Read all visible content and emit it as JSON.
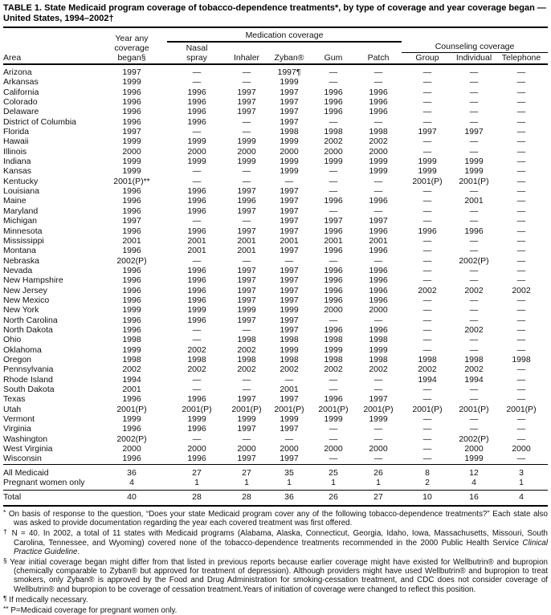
{
  "title_line1": "TABLE 1. State Medicaid program coverage of tobacco-dependence treatments*, by type of coverage and year coverage began —",
  "title_line2": "United States, 1994–2002†",
  "table": {
    "header": {
      "area": "Area",
      "year_line1": "Year any",
      "year_line2": "coverage",
      "year_line3": "began§",
      "med_group": "Medication coverage",
      "couns_group": "Counseling coverage",
      "nasal_line1": "Nasal",
      "nasal_line2": "spray",
      "inhaler": "Inhaler",
      "zyban": "Zyban®",
      "gum": "Gum",
      "patch": "Patch",
      "group": "Group",
      "individual": "Individual",
      "telephone": "Telephone"
    },
    "rows": [
      [
        "Arizona",
        "1997",
        "—",
        "—",
        "1997¶",
        "—",
        "—",
        "—",
        "—",
        "—"
      ],
      [
        "Arkansas",
        "1999",
        "—",
        "—",
        "1999",
        "—",
        "—",
        "—",
        "—",
        "—"
      ],
      [
        "California",
        "1996",
        "1996",
        "1997",
        "1997",
        "1996",
        "1996",
        "—",
        "—",
        "—"
      ],
      [
        "Colorado",
        "1996",
        "1996",
        "1997",
        "1997",
        "1996",
        "1996",
        "—",
        "—",
        "—"
      ],
      [
        "Delaware",
        "1996",
        "1996",
        "1997",
        "1997",
        "1996",
        "1996",
        "—",
        "—",
        "—"
      ],
      [
        "District of Columbia",
        "1996",
        "1996",
        "—",
        "1997",
        "—",
        "—",
        "—",
        "—",
        "—"
      ],
      [
        "Florida",
        "1997",
        "—",
        "—",
        "1998",
        "1998",
        "1998",
        "1997",
        "1997",
        "—"
      ],
      [
        "Hawaii",
        "1999",
        "1999",
        "1999",
        "1999",
        "2002",
        "2002",
        "—",
        "—",
        "—"
      ],
      [
        "Illinois",
        "2000",
        "2000",
        "2000",
        "2000",
        "2000",
        "2000",
        "—",
        "—",
        "—"
      ],
      [
        "Indiana",
        "1999",
        "1999",
        "1999",
        "1999",
        "1999",
        "1999",
        "1999",
        "1999",
        "—"
      ],
      [
        "Kansas",
        "1999",
        "—",
        "—",
        "1999",
        "—",
        "1999",
        "1999",
        "1999",
        "—"
      ],
      [
        "Kentucky",
        "2001(P)**",
        "—",
        "—",
        "—",
        "—",
        "—",
        "2001(P)",
        "2001(P)",
        "—"
      ],
      [
        "Louisiana",
        "1996",
        "1996",
        "1997",
        "1997",
        "—",
        "—",
        "—",
        "—",
        "—"
      ],
      [
        "Maine",
        "1996",
        "1996",
        "1996",
        "1997",
        "1996",
        "1996",
        "—",
        "2001",
        "—"
      ],
      [
        "Maryland",
        "1996",
        "1996",
        "1997",
        "1997",
        "—",
        "—",
        "—",
        "—",
        "—"
      ],
      [
        "Michigan",
        "1997",
        "—",
        "—",
        "1997",
        "1997",
        "1997",
        "—",
        "—",
        "—"
      ],
      [
        "Minnesota",
        "1996",
        "1996",
        "1997",
        "1997",
        "1996",
        "1996",
        "1996",
        "1996",
        "—"
      ],
      [
        "Mississippi",
        "2001",
        "2001",
        "2001",
        "2001",
        "2001",
        "2001",
        "—",
        "—",
        "—"
      ],
      [
        "Montana",
        "1996",
        "2001",
        "2001",
        "1997",
        "1996",
        "1996",
        "—",
        "—",
        "—"
      ],
      [
        "Nebraska",
        "2002(P)",
        "—",
        "—",
        "—",
        "—",
        "—",
        "—",
        "2002(P)",
        "—"
      ],
      [
        "Nevada",
        "1996",
        "1996",
        "1997",
        "1997",
        "1996",
        "1996",
        "—",
        "—",
        "—"
      ],
      [
        "New Hampshire",
        "1996",
        "1996",
        "1997",
        "1997",
        "1996",
        "1996",
        "—",
        "—",
        "—"
      ],
      [
        "New Jersey",
        "1996",
        "1996",
        "1997",
        "1997",
        "1996",
        "1996",
        "2002",
        "2002",
        "2002"
      ],
      [
        "New Mexico",
        "1996",
        "1996",
        "1997",
        "1997",
        "1996",
        "1996",
        "—",
        "—",
        "—"
      ],
      [
        "New York",
        "1999",
        "1999",
        "1999",
        "1999",
        "2000",
        "2000",
        "—",
        "—",
        "—"
      ],
      [
        "North Carolina",
        "1996",
        "1996",
        "1997",
        "1997",
        "—",
        "—",
        "—",
        "—",
        "—"
      ],
      [
        "North Dakota",
        "1996",
        "—",
        "—",
        "1997",
        "1996",
        "1996",
        "—",
        "2002",
        "—"
      ],
      [
        "Ohio",
        "1998",
        "—",
        "1998",
        "1998",
        "1998",
        "1998",
        "—",
        "—",
        "—"
      ],
      [
        "Oklahoma",
        "1999",
        "2002",
        "2002",
        "1999",
        "1999",
        "1999",
        "—",
        "—",
        "—"
      ],
      [
        "Oregon",
        "1998",
        "1998",
        "1998",
        "1998",
        "1998",
        "1998",
        "1998",
        "1998",
        "1998"
      ],
      [
        "Pennsylvania",
        "2002",
        "2002",
        "2002",
        "2002",
        "2002",
        "2002",
        "2002",
        "2002",
        "—"
      ],
      [
        "Rhode Island",
        "1994",
        "—",
        "—",
        "—",
        "—",
        "—",
        "1994",
        "1994",
        "—"
      ],
      [
        "South Dakota",
        "2001",
        "—",
        "—",
        "2001",
        "—",
        "—",
        "—",
        "—",
        "—"
      ],
      [
        "Texas",
        "1996",
        "1996",
        "1997",
        "1997",
        "1996",
        "1997",
        "—",
        "—",
        "—"
      ],
      [
        "Utah",
        "2001(P)",
        "2001(P)",
        "2001(P)",
        "2001(P)",
        "2001(P)",
        "2001(P)",
        "2001(P)",
        "2001(P)",
        "2001(P)"
      ],
      [
        "Vermont",
        "1999",
        "1999",
        "1999",
        "1999",
        "1999",
        "1999",
        "—",
        "—",
        "—"
      ],
      [
        "Virginia",
        "1996",
        "1996",
        "1997",
        "1997",
        "—",
        "—",
        "—",
        "—",
        "—"
      ],
      [
        "Washington",
        "2002(P)",
        "—",
        "—",
        "—",
        "—",
        "—",
        "—",
        "2002(P)",
        "—"
      ],
      [
        "West Virginia",
        "2000",
        "2000",
        "2000",
        "2000",
        "2000",
        "2000",
        "—",
        "2000",
        "2000"
      ],
      [
        "Wisconsin",
        "1996",
        "1996",
        "1997",
        "1997",
        "—",
        "—",
        "—",
        "1999",
        "—"
      ]
    ],
    "summary": [
      {
        "label": "All Medicaid",
        "values": [
          "36",
          "27",
          "27",
          "35",
          "25",
          "26",
          "8",
          "12",
          "3"
        ]
      },
      {
        "label": "Pregnant women only",
        "values": [
          "4",
          "1",
          "1",
          "1",
          "1",
          "1",
          "2",
          "4",
          "1"
        ]
      }
    ],
    "total": {
      "label": "Total",
      "values": [
        "40",
        "28",
        "28",
        "36",
        "26",
        "27",
        "10",
        "16",
        "4"
      ]
    }
  },
  "footnotes": [
    {
      "symbol": "*",
      "text": "On basis of response to the question, “Does your state Medicaid program cover any of the following tobacco-dependence treatments?” Each state also was asked to provide documentation regarding the year each covered treatment was first offered."
    },
    {
      "symbol": "†",
      "text": "N = 40. In 2002, a total of 11 states with Medicaid programs (Alabama, Alaska, Connecticut, Georgia, Idaho, Iowa, Massachusetts, Missouri, South Carolina, Tennessee, and Wyoming) covered none of the tobacco-dependence treatments recommended in the 2000 Public Health Service ",
      "italic": "Clinical Practice Guideline",
      "after": "."
    },
    {
      "symbol": "§",
      "text": "Year initial coverage began might differ from that listed in previous reports because earlier coverage might have existed for Wellbutrin® and bupropion (chemically comparable to Zyban® but approved for treatment of depression). Although providers might have used Wellbutrin® and bupropion to treat smokers, only Zyban® is approved by the Food and Drug Administration for smoking-cessation treatment, and CDC does not consider coverage of Wellbutrin® and bupropion to be coverage of cessation treatment.Years of initiation of coverage were changed to reflect this position."
    },
    {
      "symbol": "¶",
      "text": "If medically necessary."
    },
    {
      "symbol": "**",
      "text": "P=Medicaid coverage for pregnant women only."
    }
  ]
}
